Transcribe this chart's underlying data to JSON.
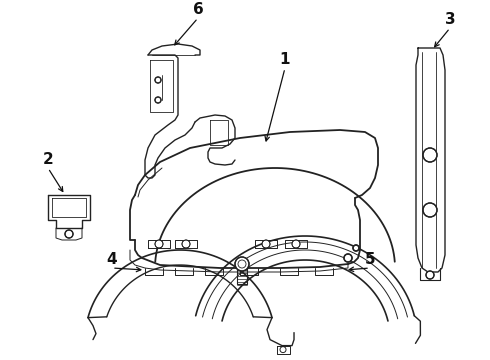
{
  "bg_color": "#ffffff",
  "line_color": "#222222",
  "label_color": "#111111",
  "figsize": [
    4.9,
    3.6
  ],
  "dpi": 100,
  "lw": 1.0
}
